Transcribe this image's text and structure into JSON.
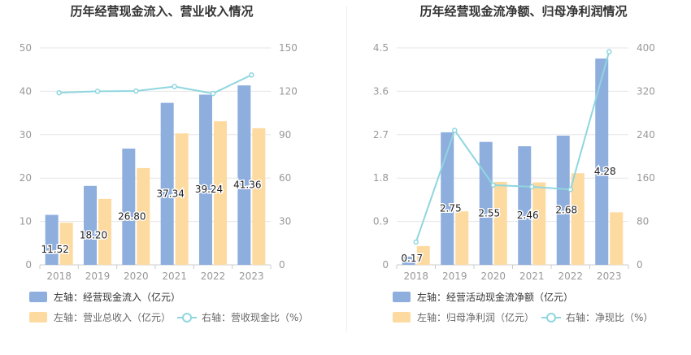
{
  "colors": {
    "bar_blue": "#8eaedd",
    "bar_orange": "#fddaa0",
    "line": "#8fd6de",
    "axis_text": "#999999",
    "grid": "#e6e6e6",
    "title": "#333333",
    "label": "#222222"
  },
  "chart_data": [
    {
      "type": "bar",
      "title": "历年经营现金流入、营业收入情况",
      "categories": [
        "2018",
        "2019",
        "2020",
        "2021",
        "2022",
        "2023"
      ],
      "left_axis": {
        "ticks": [
          "0",
          "10",
          "20",
          "30",
          "40",
          "50"
        ],
        "range": [
          0,
          50
        ]
      },
      "right_axis": {
        "ticks": [
          "0",
          "30",
          "60",
          "90",
          "120",
          "150"
        ],
        "range": [
          0,
          150
        ]
      },
      "grid": true,
      "legend_position": "bottom",
      "series": [
        {
          "name": "左轴：经营现金流入（亿元）",
          "type": "bar",
          "axis": "left",
          "color": "#8eaedd",
          "values": [
            11.52,
            18.2,
            26.8,
            37.34,
            39.24,
            41.36
          ],
          "labels": [
            "11.52",
            "18.20",
            "26.80",
            "37.34",
            "39.24",
            "41.36"
          ]
        },
        {
          "name": "左轴：营业总收入（亿元）",
          "type": "bar",
          "axis": "left",
          "color": "#fddaa0",
          "values": [
            9.7,
            15.2,
            22.3,
            30.3,
            33.1,
            31.5
          ]
        },
        {
          "name": "右轴：营收现金比（%）",
          "type": "line",
          "axis": "right",
          "color": "#8fd6de",
          "values": [
            119,
            120,
            120.2,
            123.3,
            118.5,
            131.3
          ]
        }
      ]
    },
    {
      "type": "bar",
      "title": "历年经营现金流净额、归母净利润情况",
      "categories": [
        "2018",
        "2019",
        "2020",
        "2021",
        "2022",
        "2023"
      ],
      "left_axis": {
        "ticks": [
          "0",
          "0.9",
          "1.8",
          "2.7",
          "3.6",
          "4.5"
        ],
        "range": [
          0,
          4.5
        ]
      },
      "right_axis": {
        "ticks": [
          "0",
          "80",
          "160",
          "240",
          "320",
          "400"
        ],
        "range": [
          0,
          400
        ]
      },
      "grid": true,
      "legend_position": "bottom",
      "series": [
        {
          "name": "左轴：经营活动现金流净额（亿元）",
          "type": "bar",
          "axis": "left",
          "color": "#8eaedd",
          "values": [
            0.17,
            2.75,
            2.55,
            2.46,
            2.68,
            4.28
          ],
          "labels": [
            "0.17",
            "2.75",
            "2.55",
            "2.46",
            "2.68",
            "4.28"
          ]
        },
        {
          "name": "左轴：归母净利润（亿元）",
          "type": "bar",
          "axis": "left",
          "color": "#fddaa0",
          "values": [
            0.39,
            1.11,
            1.72,
            1.71,
            1.9,
            1.09
          ]
        },
        {
          "name": "右轴：净现比（%）",
          "type": "line",
          "axis": "right",
          "color": "#8fd6de",
          "values": [
            42,
            248,
            147,
            144,
            139,
            393
          ]
        }
      ]
    }
  ]
}
